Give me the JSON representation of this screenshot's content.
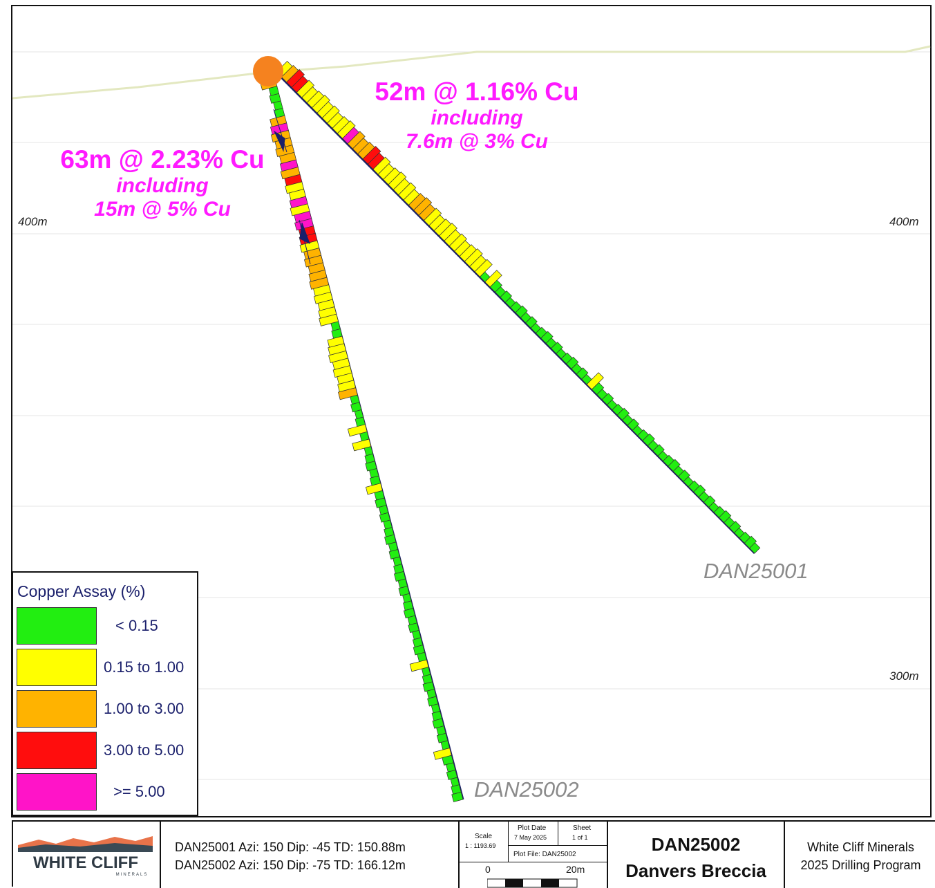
{
  "section": {
    "elevation_labels": [
      {
        "left": "400m",
        "right": "400m"
      },
      {
        "right": "300m"
      }
    ],
    "holes": [
      {
        "name": "DAN25001",
        "azi": "150",
        "dip": "-45",
        "td": "150.88m"
      },
      {
        "name": "DAN25002",
        "azi": "150",
        "dip": "-75",
        "td": "166.12m"
      }
    ],
    "annotations": [
      {
        "main": "52m @ 1.16% Cu",
        "sub1": "including",
        "sub2": "7.6m @ 3% Cu"
      },
      {
        "main": "63m @ 2.23% Cu",
        "sub1": "including",
        "sub2": "15m @ 5% Cu"
      }
    ],
    "collar_color": "#f5821f",
    "topography_color": "#e3e8c0",
    "hole_trace_color": "#1a1f6b"
  },
  "legend": {
    "title": "Copper Assay (%)",
    "items": [
      {
        "label": "< 0.15",
        "color": "#22ee11"
      },
      {
        "label": "0.15 to 1.00",
        "color": "#ffff00"
      },
      {
        "label": "1.00 to 3.00",
        "color": "#ffb300"
      },
      {
        "label": "3.00 to 5.00",
        "color": "#ff0d0d"
      },
      {
        "label": ">= 5.00",
        "color": "#ff14c8"
      }
    ]
  },
  "titleblock": {
    "logo_text": "WHITE CLIFF",
    "logo_sub": "MINERALS",
    "hole_line_1": "DAN25001 Azi: 150  Dip: -45  TD: 150.88m",
    "hole_line_2": "DAN25002 Azi: 150  Dip: -75  TD: 166.12m",
    "scale_label": "Scale",
    "scale_value": "1 : 1193.69",
    "plot_date_label": "Plot Date",
    "plot_date_value": "7 May 2025",
    "sheet_label": "Sheet",
    "sheet_value": "1 of 1",
    "plot_file": "Plot File: DAN25002",
    "scalebar_start": "0",
    "scalebar_end": "20m",
    "section_id": "DAN25002",
    "section_name": "Danvers Breccia",
    "company": "White Cliff Minerals",
    "program": "2025 Drilling Program"
  }
}
